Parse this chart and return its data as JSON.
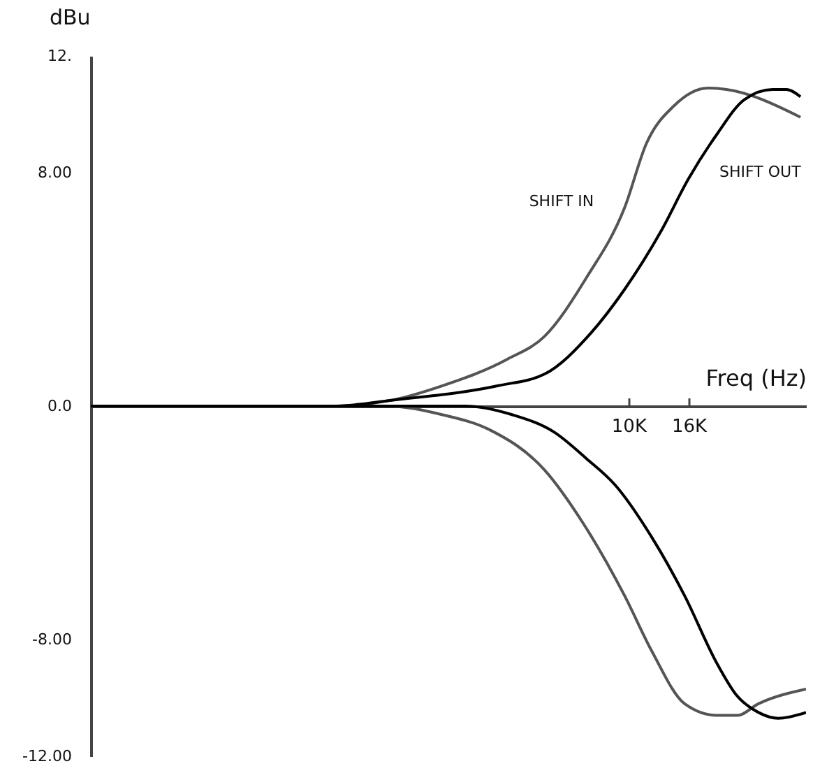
{
  "chart_data": {
    "type": "line",
    "xlabel": "Freq (Hz)",
    "ylabel": "dBu",
    "log": "x",
    "xlim": [
      150,
      40000
    ],
    "xticks": [
      {
        "value": 10000,
        "label": "10K"
      },
      {
        "value": 16000,
        "label": "16K"
      }
    ],
    "ylim": [
      -12,
      12
    ],
    "yticks": [
      {
        "value": 12,
        "label": "12."
      },
      {
        "value": 8,
        "label": "8.00"
      },
      {
        "value": 0,
        "label": "0.0"
      },
      {
        "value": -8,
        "label": "-8.00"
      },
      {
        "value": -12,
        "label": "-12.00"
      }
    ],
    "series": [
      {
        "name": "SHIFT IN",
        "color": "#555555",
        "x": [
          150,
          1000,
          1570,
          2340,
          3870,
          5200,
          7200,
          9700,
          11500,
          14300,
          18600,
          21500,
          38300
        ],
        "values": [
          0,
          0,
          0.2,
          0.7,
          1.6,
          2.4,
          4.4,
          6.8,
          9.0,
          10.3,
          10.9,
          10.85,
          9.9
        ]
      },
      {
        "name": "SHIFT OUT",
        "color": "#000000",
        "x": [
          150,
          1000,
          1570,
          3620,
          5200,
          7450,
          9700,
          12900,
          16000,
          19900,
          24700,
          30800,
          34300,
          38300
        ],
        "values": [
          0,
          0,
          0.2,
          0.7,
          1.1,
          2.5,
          4.0,
          6.0,
          7.8,
          9.3,
          10.5,
          10.85,
          10.85,
          10.6
        ]
      },
      {
        "color": "#555555",
        "x": [
          150,
          1000,
          1510,
          2340,
          3360,
          5200,
          7000,
          9700,
          12000,
          15500,
          19900,
          23400,
          27600,
          40000
        ],
        "values": [
          0,
          0,
          0,
          -0.3,
          -0.8,
          -2.2,
          -4.0,
          -6.5,
          -8.4,
          -10.2,
          -10.6,
          -10.6,
          -10.2,
          -9.7
        ]
      },
      {
        "color": "#000000",
        "x": [
          150,
          1000,
          2790,
          4040,
          5610,
          7200,
          9000,
          12000,
          15500,
          19900,
          23200,
          27600,
          32200,
          40000
        ],
        "values": [
          0,
          0,
          0,
          -0.3,
          -0.9,
          -1.8,
          -2.7,
          -4.5,
          -6.5,
          -8.8,
          -9.9,
          -10.5,
          -10.7,
          -10.5
        ]
      }
    ]
  }
}
